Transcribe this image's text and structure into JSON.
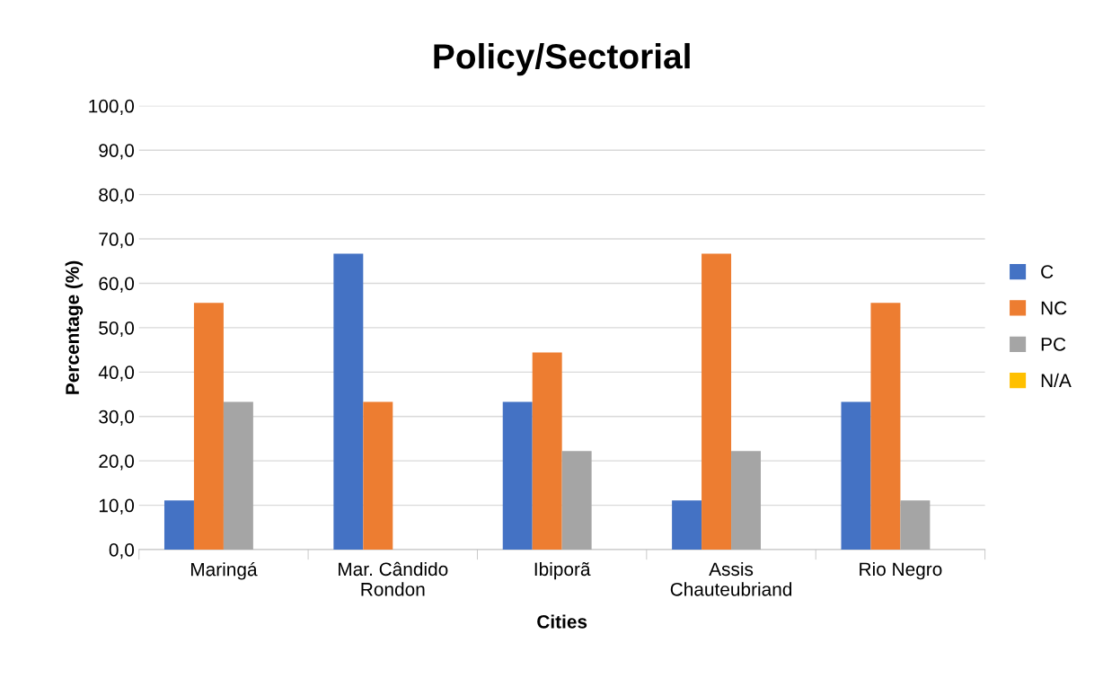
{
  "chart_data": {
    "type": "bar",
    "title": "Policy/Sectorial",
    "xlabel": "Cities",
    "ylabel": "Percentage (%)",
    "categories": [
      "Maringá",
      "Mar. Cândido\nRondon",
      "Ibiporã",
      "Assis\nChauteubriand",
      "Rio Negro"
    ],
    "series": [
      {
        "name": "C",
        "color": "#4472c4",
        "values": [
          11.1,
          66.7,
          33.3,
          11.1,
          33.3
        ]
      },
      {
        "name": "NC",
        "color": "#ed7d31",
        "values": [
          55.6,
          33.3,
          44.4,
          66.7,
          55.6
        ]
      },
      {
        "name": "PC",
        "color": "#a5a5a5",
        "values": [
          33.3,
          0,
          22.2,
          22.2,
          11.1
        ]
      },
      {
        "name": "N/A",
        "color": "#ffc000",
        "values": [
          0,
          0,
          0,
          0,
          0
        ]
      }
    ],
    "ylim": [
      0,
      100
    ],
    "yticks": [
      {
        "value": 0,
        "label": "0,0"
      },
      {
        "value": 10,
        "label": "10,0"
      },
      {
        "value": 20,
        "label": "20,0"
      },
      {
        "value": 30,
        "label": "30,0"
      },
      {
        "value": 40,
        "label": "40,0"
      },
      {
        "value": 50,
        "label": "50,0"
      },
      {
        "value": 60,
        "label": "60,0"
      },
      {
        "value": 70,
        "label": "70,0"
      },
      {
        "value": 80,
        "label": "80,0"
      },
      {
        "value": 90,
        "label": "90,0"
      },
      {
        "value": 100,
        "label": "100,0"
      }
    ],
    "grid": "y",
    "legend": "right"
  }
}
